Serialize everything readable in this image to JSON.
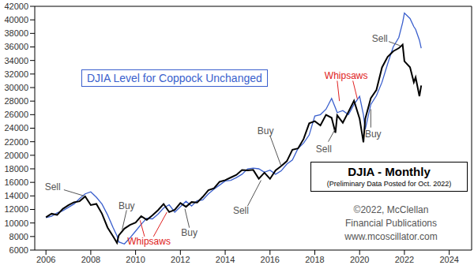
{
  "chart_data": {
    "type": "line",
    "subtitle": "(Preliminary Data Posted for Oct. 2022)",
    "source": [
      "©2022, McClellan",
      "Financial Publications",
      "www.mcoscillator.com"
    ],
    "x": [
      2006.0,
      2006.25,
      2006.5,
      2006.75,
      2007.0,
      2007.25,
      2007.5,
      2007.75,
      2008.0,
      2008.25,
      2008.5,
      2008.75,
      2009.0,
      2009.17,
      2009.25,
      2009.5,
      2009.75,
      2010.0,
      2010.25,
      2010.5,
      2010.75,
      2011.0,
      2011.25,
      2011.5,
      2011.75,
      2012.0,
      2012.25,
      2012.5,
      2012.75,
      2013.0,
      2013.25,
      2013.5,
      2013.75,
      2014.0,
      2014.25,
      2014.5,
      2014.75,
      2015.0,
      2015.25,
      2015.5,
      2015.75,
      2016.0,
      2016.25,
      2016.5,
      2016.75,
      2017.0,
      2017.25,
      2017.5,
      2017.75,
      2018.0,
      2018.25,
      2018.5,
      2018.75,
      2018.92,
      2019.0,
      2019.25,
      2019.5,
      2019.75,
      2020.0,
      2020.17,
      2020.25,
      2020.5,
      2020.75,
      2021.0,
      2021.25,
      2021.5,
      2021.75,
      2021.92,
      2022.0,
      2022.25,
      2022.42,
      2022.5,
      2022.67,
      2022.75
    ],
    "series": [
      {
        "name": "DJIA - Monthly",
        "color": "#000000",
        "values": [
          10860,
          11370,
          11190,
          12080,
          12620,
          13060,
          13210,
          13930,
          12650,
          12820,
          11380,
          9325,
          8000,
          7062,
          8168,
          9170,
          9712,
          10067,
          11008,
          10465,
          11118,
          11892,
          12810,
          11614,
          11955,
          12952,
          12393,
          13090,
          13025,
          13860,
          14840,
          15130,
          16086,
          16321,
          16717,
          17098,
          17828,
          17776,
          17840,
          16528,
          17425,
          16516,
          17773,
          18400,
          19123,
          20812,
          21009,
          22405,
          24719,
          25029,
          24415,
          25965,
          25538,
          23327,
          25916,
          24815,
          26403,
          28051,
          25409,
          21917,
          25383,
          28430,
          29638,
          32981,
          34529,
          35361,
          35819,
          36338,
          33893,
          32990,
          30775,
          31510,
          28725,
          30300
        ]
      },
      {
        "name": "DJIA Level for Coppock Unchanged",
        "color": "#3a5fcd",
        "values": [
          10800,
          11000,
          11500,
          11800,
          12300,
          12800,
          13600,
          14300,
          14600,
          13800,
          12800,
          11200,
          9300,
          8100,
          7200,
          6900,
          7800,
          8800,
          9800,
          10700,
          10600,
          11300,
          12200,
          12700,
          11600,
          12400,
          13200,
          12500,
          13300,
          13400,
          14300,
          15000,
          15600,
          16200,
          16300,
          16700,
          17200,
          18000,
          18100,
          18000,
          17500,
          17800,
          17200,
          17700,
          18700,
          19300,
          21000,
          21800,
          23000,
          25800,
          26000,
          26800,
          28400,
          27000,
          26300,
          26600,
          26000,
          27500,
          28700,
          26000,
          23800,
          27500,
          28800,
          30800,
          33500,
          36000,
          37400,
          39600,
          41000,
          40200,
          39000,
          38600,
          37000,
          35800
        ]
      }
    ],
    "xlim": [
      2005.5,
      2025
    ],
    "xticks": [
      2006,
      2008,
      2010,
      2012,
      2014,
      2016,
      2018,
      2020,
      2022,
      2024
    ],
    "ylim": [
      6000,
      42000
    ],
    "yticks": [
      6000,
      8000,
      10000,
      12000,
      14000,
      16000,
      18000,
      20000,
      22000,
      24000,
      26000,
      28000,
      30000,
      32000,
      34000,
      36000,
      38000,
      40000,
      42000
    ],
    "grid": false,
    "annotations": [
      {
        "text": "Sell",
        "color": "#555555",
        "x": 2006.3,
        "y": 15300,
        "arrows": [
          [
            2006.8,
            14900,
            2007.7,
            14000
          ]
        ]
      },
      {
        "text": "Buy",
        "color": "#555555",
        "x": 2009.6,
        "y": 12600,
        "arrows": [
          [
            2009.6,
            11900,
            2009.4,
            9000
          ]
        ]
      },
      {
        "text": "Whipsaws",
        "color": "#e02020",
        "x": 2010.6,
        "y": 7300,
        "arrows": [
          [
            2010.4,
            8000,
            2010.2,
            10400
          ],
          [
            2010.8,
            8000,
            2011.4,
            11600
          ]
        ]
      },
      {
        "text": "Buy",
        "color": "#555555",
        "x": 2012.4,
        "y": 8600,
        "arrows": [
          [
            2012.4,
            9300,
            2012.2,
            12100
          ]
        ]
      },
      {
        "text": "Sell",
        "color": "#555555",
        "x": 2014.7,
        "y": 11800,
        "arrows": [
          [
            2015.0,
            12500,
            2015.6,
            16300
          ]
        ]
      },
      {
        "text": "Buy",
        "color": "#555555",
        "x": 2015.8,
        "y": 23600,
        "arrows": [
          [
            2016.0,
            22900,
            2016.5,
            18400
          ]
        ]
      },
      {
        "text": "Sell",
        "color": "#555555",
        "x": 2018.4,
        "y": 21000,
        "arrows": [
          [
            2018.6,
            22000,
            2018.9,
            23800
          ]
        ]
      },
      {
        "text": "Whipsaws",
        "color": "#e02020",
        "x": 2019.4,
        "y": 31800,
        "arrows": [
          [
            2019.0,
            31000,
            2019.1,
            28000
          ],
          [
            2019.7,
            31000,
            2019.9,
            28300
          ]
        ]
      },
      {
        "text": "Buy",
        "color": "#555555",
        "x": 2020.6,
        "y": 23200,
        "arrows": [
          [
            2020.5,
            24100,
            2020.5,
            26800
          ]
        ]
      },
      {
        "text": "Sell",
        "color": "#555555",
        "x": 2020.9,
        "y": 37300,
        "arrows": [
          [
            2021.3,
            36800,
            2021.8,
            36200
          ]
        ]
      }
    ]
  }
}
